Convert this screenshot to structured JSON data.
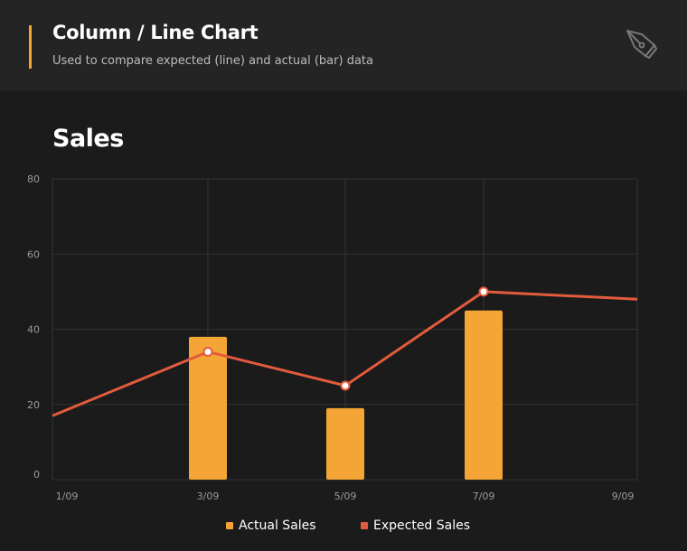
{
  "header": {
    "title": "Column / Line Chart",
    "subtitle": "Used to compare expected (line) and actual (bar) data",
    "icon": "pen-nib-icon"
  },
  "section": {
    "title": "Sales"
  },
  "colors": {
    "actual": "#f4a536",
    "expected": "#e35b3d",
    "grid": "#333333",
    "tick_text": "#9a9a9a"
  },
  "chart_data": {
    "type": "bar",
    "categories": [
      "1/09",
      "3/09",
      "5/09",
      "7/09",
      "9/09"
    ],
    "ylim": [
      0,
      80
    ],
    "yticks": [
      "0",
      "20",
      "40",
      "60",
      "80"
    ],
    "grid": true,
    "legend_position": "bottom-center",
    "series": [
      {
        "name": "Actual Sales",
        "type": "bar",
        "values": [
          null,
          38,
          19,
          45,
          null
        ]
      },
      {
        "name": "Expected Sales",
        "type": "line",
        "values": [
          17,
          34,
          25,
          50,
          48
        ]
      }
    ]
  }
}
